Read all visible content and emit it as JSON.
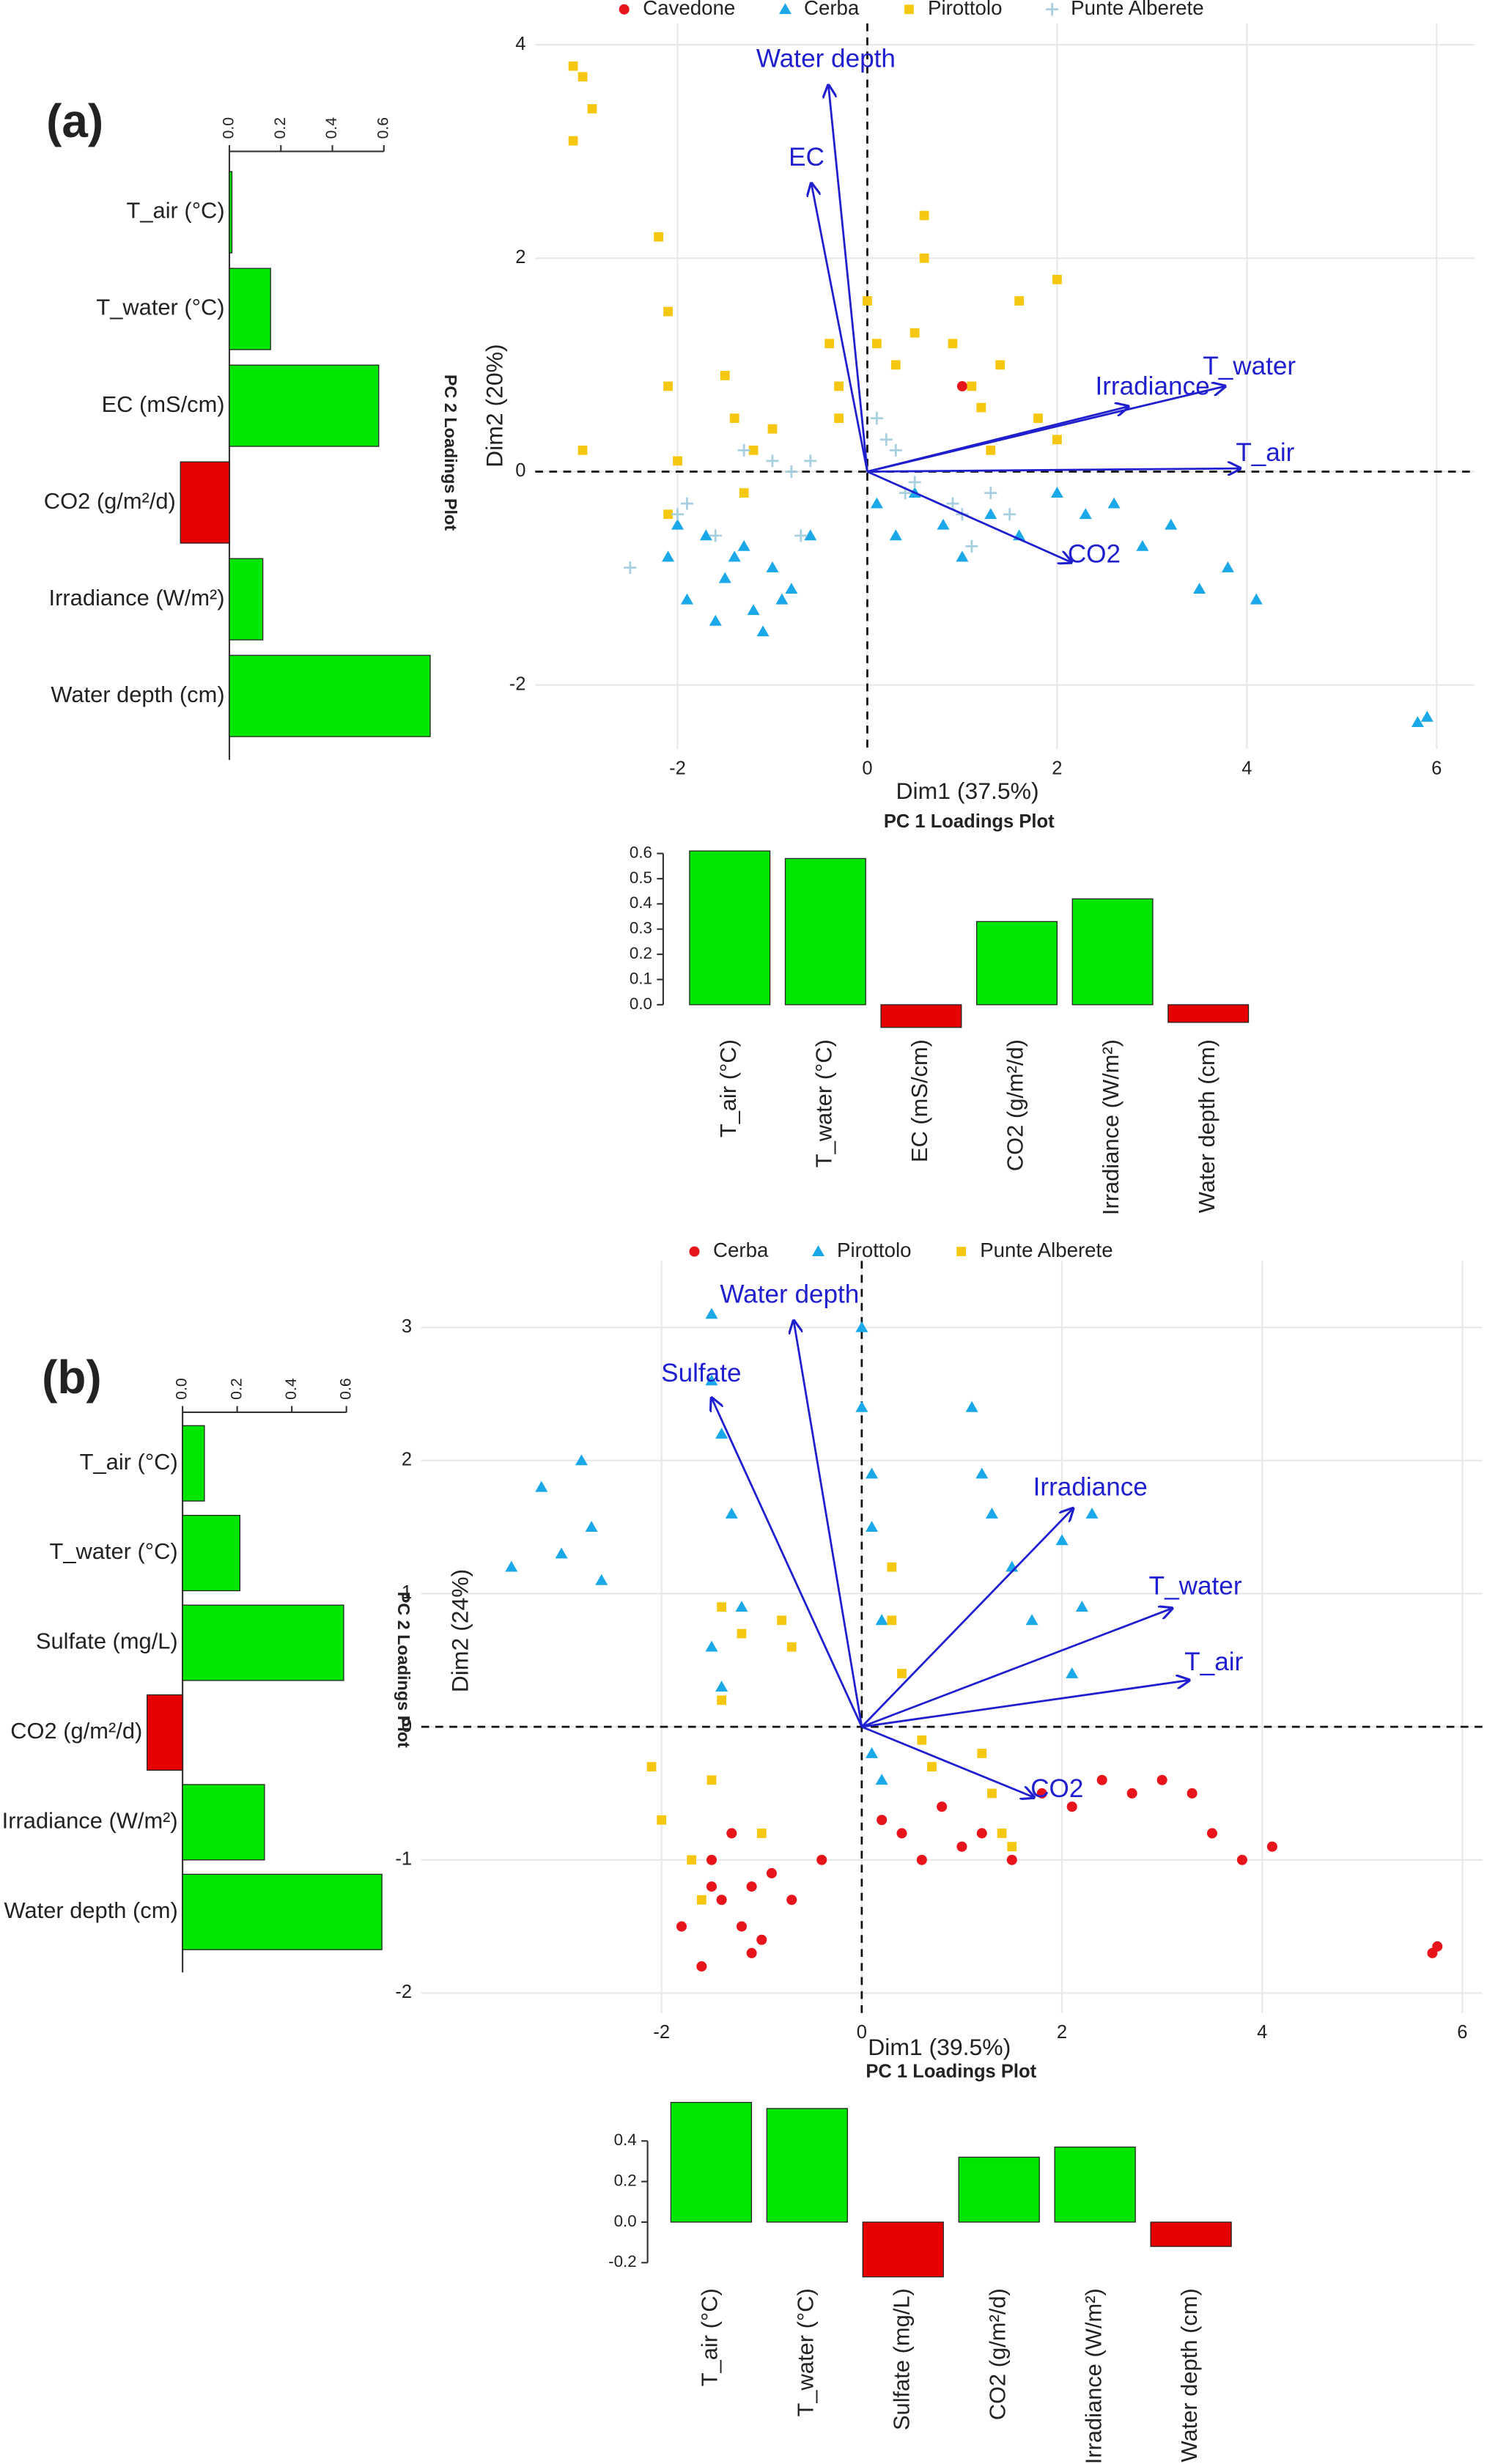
{
  "chart_data": [
    {
      "type": "hbar",
      "panel_label": "(a)",
      "title": "PC 2 Loadings Plot",
      "categories": [
        "T_air (°C)",
        "T_water (°C)",
        "EC (mS/cm)",
        "CO2 (g/m²/d)",
        "Irradiance (W/m²)",
        "Water depth (cm)"
      ],
      "values": [
        0.01,
        0.16,
        0.58,
        -0.19,
        0.13,
        0.78
      ],
      "positive_color": "#00e600",
      "negative_color": "#e60000",
      "xlim": [
        -0.2,
        0.8
      ],
      "xticks": [
        {
          "value": 0,
          "label": "0.0"
        },
        0.2,
        0.4,
        0.6
      ]
    },
    {
      "type": "scatter",
      "x_label": "Dim1 (37.5%)",
      "y_label": "Dim2 (20%)",
      "xlim": [
        -3.5,
        6.4
      ],
      "ylim": [
        -2.6,
        4.2
      ],
      "xticks": [
        -2,
        0,
        2,
        4,
        6
      ],
      "yticks": [
        -2,
        0,
        2,
        4
      ],
      "grid": true,
      "zero_lines": true,
      "legend": "top",
      "arrow_color": "#1f1fd0",
      "series": [
        {
          "name": "Cavedone",
          "color": "#e8141c",
          "marker": "circle",
          "x": [
            1.0
          ],
          "values": [
            0.8
          ]
        },
        {
          "name": "Cerba",
          "color": "#1ba8e8",
          "marker": "triangle",
          "x": [
            -2.1,
            -1.9,
            -1.7,
            -1.5,
            -1.3,
            -1.2,
            -1.0,
            -0.8,
            -0.6,
            -2.0,
            -1.6,
            -1.4,
            -1.1,
            -0.9,
            0.1,
            0.3,
            0.5,
            0.8,
            1.0,
            1.3,
            1.6,
            2.0,
            2.3,
            2.6,
            2.9,
            3.2,
            3.5,
            3.8,
            4.1,
            5.8,
            5.9
          ],
          "values": [
            -0.8,
            -1.2,
            -0.6,
            -1.0,
            -0.7,
            -1.3,
            -0.9,
            -1.1,
            -0.6,
            -0.5,
            -1.4,
            -0.8,
            -1.5,
            -1.2,
            -0.3,
            -0.6,
            -0.2,
            -0.5,
            -0.8,
            -0.4,
            -0.6,
            -0.2,
            -0.4,
            -0.3,
            -0.7,
            -0.5,
            -1.1,
            -0.9,
            -1.2,
            -2.35,
            -2.3
          ]
        },
        {
          "name": "Pirottolo",
          "color": "#f5c710",
          "marker": "square",
          "x": [
            -3.1,
            -3.0,
            -2.9,
            -3.1,
            -3.0,
            -2.2,
            -2.1,
            -2.1,
            -2.0,
            -2.1,
            -1.5,
            -1.4,
            -1.2,
            -1.0,
            -1.3,
            -0.4,
            -0.3,
            -0.3,
            0.0,
            0.1,
            0.3,
            0.5,
            0.6,
            0.6,
            0.9,
            1.1,
            1.2,
            1.4,
            1.6,
            1.8,
            2.0,
            2.0,
            1.3
          ],
          "values": [
            3.8,
            3.7,
            3.4,
            3.1,
            0.2,
            2.2,
            1.5,
            0.8,
            0.1,
            -0.4,
            0.9,
            0.5,
            0.2,
            0.4,
            -0.2,
            1.2,
            0.8,
            0.5,
            1.6,
            1.2,
            1.0,
            1.3,
            2.4,
            2.0,
            1.2,
            0.8,
            0.6,
            1.0,
            1.6,
            0.5,
            1.8,
            0.3,
            0.2
          ]
        },
        {
          "name": "Punte Alberete",
          "color": "#a8cfe0",
          "marker": "plus",
          "x": [
            -2.5,
            -2.0,
            -1.9,
            -1.6,
            -1.3,
            -1.0,
            -0.8,
            -0.6,
            -0.7,
            0.1,
            0.2,
            0.3,
            0.4,
            0.5,
            0.9,
            1.0,
            1.1,
            1.3,
            1.5
          ],
          "values": [
            -0.9,
            -0.4,
            -0.3,
            -0.6,
            0.2,
            0.1,
            0.0,
            0.1,
            -0.6,
            0.5,
            0.3,
            0.2,
            -0.2,
            -0.1,
            -0.3,
            -0.4,
            -0.7,
            -0.2,
            -0.4
          ]
        }
      ],
      "arrows": [
        {
          "label": "Water depth",
          "x": -0.41,
          "y": 3.62
        },
        {
          "label": "EC",
          "x": -0.59,
          "y": 2.7
        },
        {
          "label": "T_water",
          "x": 3.77,
          "y": 0.8
        },
        {
          "label": "Irradiance",
          "x": 2.75,
          "y": 0.61
        },
        {
          "label": "T_air",
          "x": 3.93,
          "y": 0.03
        },
        {
          "label": "CO2",
          "x": 2.15,
          "y": -0.85
        }
      ]
    },
    {
      "type": "bar",
      "title": "PC 1 Loadings Plot",
      "categories": [
        "T_air (°C)",
        "T_water (°C)",
        "EC (mS/cm)",
        "CO2 (g/m²/d)",
        "Irradiance (W/m²)",
        "Water depth (cm)"
      ],
      "values": [
        0.61,
        0.58,
        -0.09,
        0.33,
        0.42,
        -0.07
      ],
      "positive_color": "#00e600",
      "negative_color": "#e60000",
      "ylim": [
        -0.1,
        0.62
      ],
      "yticks": [
        {
          "value": 0,
          "label": "0.0"
        },
        0.1,
        0.2,
        0.3,
        0.4,
        0.5,
        0.6
      ]
    },
    {
      "type": "hbar",
      "panel_label": "(b)",
      "title": "PC 2 Loadings Plot",
      "categories": [
        "T_air (°C)",
        "T_water (°C)",
        "Sulfate (mg/L)",
        "CO2 (g/m²/d)",
        "Irradiance (W/m²)",
        "Water depth (cm)"
      ],
      "values": [
        0.08,
        0.21,
        0.59,
        -0.13,
        0.3,
        0.73
      ],
      "positive_color": "#00e600",
      "negative_color": "#e60000",
      "xlim": [
        -0.15,
        0.75
      ],
      "xticks": [
        {
          "value": 0,
          "label": "0.0"
        },
        0.2,
        0.4,
        0.6
      ]
    },
    {
      "type": "scatter",
      "x_label": "Dim1 (39.5%)",
      "y_label": "Dim2 (24%)",
      "xlim": [
        -4.4,
        6.2
      ],
      "ylim": [
        -2.15,
        3.5
      ],
      "xticks": [
        -2,
        0,
        2,
        4,
        6
      ],
      "yticks": [
        -2,
        -1,
        0,
        1,
        2,
        3
      ],
      "grid": true,
      "zero_lines": true,
      "legend": "top",
      "arrow_color": "#1f1fd0",
      "series": [
        {
          "name": "Cerba",
          "color": "#e8141c",
          "marker": "circle",
          "x": [
            -1.8,
            -1.6,
            -1.5,
            -1.4,
            -1.3,
            -1.2,
            -1.1,
            -1.0,
            -0.9,
            -0.7,
            -0.4,
            -1.5,
            -1.1,
            0.2,
            0.4,
            0.6,
            0.8,
            1.0,
            1.2,
            1.5,
            1.8,
            2.1,
            2.4,
            2.7,
            3.0,
            3.3,
            3.5,
            3.8,
            4.1,
            5.7,
            5.75
          ],
          "values": [
            -1.5,
            -1.8,
            -1.0,
            -1.3,
            -0.8,
            -1.5,
            -1.2,
            -1.6,
            -1.1,
            -1.3,
            -1.0,
            -1.2,
            -1.7,
            -0.7,
            -0.8,
            -1.0,
            -0.6,
            -0.9,
            -0.8,
            -1.0,
            -0.5,
            -0.6,
            -0.4,
            -0.5,
            -0.4,
            -0.5,
            -0.8,
            -1.0,
            -0.9,
            -1.7,
            -1.65
          ]
        },
        {
          "name": "Pirottolo",
          "color": "#1ba8e8",
          "marker": "triangle",
          "x": [
            -3.5,
            -3.2,
            -3.0,
            -2.8,
            -2.7,
            -2.6,
            -1.5,
            -1.5,
            -1.4,
            -1.3,
            -1.2,
            -1.5,
            -1.4,
            0.0,
            0.0,
            0.1,
            0.1,
            0.2,
            0.2,
            0.1,
            1.1,
            1.2,
            1.3,
            1.5,
            1.7,
            2.0,
            2.2,
            2.3,
            2.1
          ],
          "values": [
            1.2,
            1.8,
            1.3,
            2.0,
            1.5,
            1.1,
            3.1,
            2.6,
            2.2,
            1.6,
            0.9,
            0.6,
            0.3,
            3.0,
            2.4,
            1.9,
            1.5,
            0.8,
            -0.4,
            -0.2,
            2.4,
            1.9,
            1.6,
            1.2,
            0.8,
            1.4,
            0.9,
            1.6,
            0.4
          ]
        },
        {
          "name": "Punte Alberete",
          "color": "#f5c710",
          "marker": "square",
          "x": [
            -2.1,
            -2.0,
            -1.7,
            -1.6,
            -1.5,
            -1.4,
            -1.2,
            -1.0,
            -0.8,
            -1.4,
            -0.7,
            0.3,
            0.3,
            0.4,
            0.6,
            0.7,
            1.2,
            1.3,
            1.4,
            1.5
          ],
          "values": [
            -0.3,
            -0.7,
            -1.0,
            -1.3,
            -0.4,
            0.9,
            0.7,
            -0.8,
            0.8,
            0.2,
            0.6,
            1.2,
            0.8,
            0.4,
            -0.1,
            -0.3,
            -0.2,
            -0.5,
            -0.8,
            -0.9
          ]
        }
      ],
      "arrows": [
        {
          "label": "Water depth",
          "x": -0.68,
          "y": 3.05
        },
        {
          "label": "Sulfate",
          "x": -1.5,
          "y": 2.47
        },
        {
          "label": "Irradiance",
          "x": 2.11,
          "y": 1.64
        },
        {
          "label": "T_water",
          "x": 3.1,
          "y": 0.89
        },
        {
          "label": "T_air",
          "x": 3.27,
          "y": 0.35
        },
        {
          "label": "CO2",
          "x": 1.72,
          "y": -0.53
        }
      ]
    },
    {
      "type": "bar",
      "title": "PC 1 Loadings Plot",
      "categories": [
        "T_air (°C)",
        "T_water (°C)",
        "Sulfate (mg/L)",
        "CO2 (g/m²/d)",
        "Irradiance (W/m²)",
        "Water depth (cm)"
      ],
      "values": [
        0.59,
        0.56,
        -0.27,
        0.32,
        0.37,
        -0.12
      ],
      "positive_color": "#00e600",
      "negative_color": "#e60000",
      "ylim": [
        -0.28,
        0.62
      ],
      "yticks": [
        -0.2,
        {
          "value": 0,
          "label": "0.0"
        },
        0.2,
        0.4
      ]
    }
  ]
}
